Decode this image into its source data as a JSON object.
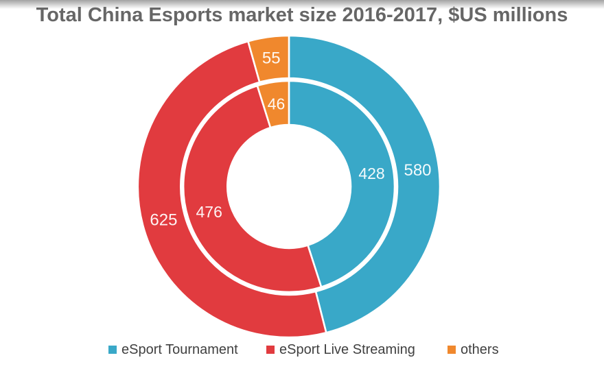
{
  "title": "Total China Esports market size 2016-2017, $US millions",
  "chart_data": {
    "type": "pie",
    "variant": "double-ring-donut",
    "title": "Total China Esports market size 2016-2017, $US millions",
    "unit": "$US millions",
    "categories": [
      "eSport Tournament",
      "eSport Live Streaming",
      "others"
    ],
    "series": [
      {
        "name": "outer-ring",
        "values": [
          580,
          625,
          55
        ]
      },
      {
        "name": "inner-ring",
        "values": [
          428,
          476,
          46
        ]
      }
    ],
    "colors": [
      "#39A8C8",
      "#E13B3F",
      "#F0882D"
    ],
    "start_angle_deg": 0,
    "direction": "clockwise",
    "legend_position": "bottom",
    "data_labels": "shown-inside-slices"
  },
  "legend": {
    "items": [
      {
        "label": "eSport Tournament",
        "color": "#39A8C8"
      },
      {
        "label": "eSport Live Streaming",
        "color": "#E13B3F"
      },
      {
        "label": "others",
        "color": "#F0882D"
      }
    ]
  }
}
